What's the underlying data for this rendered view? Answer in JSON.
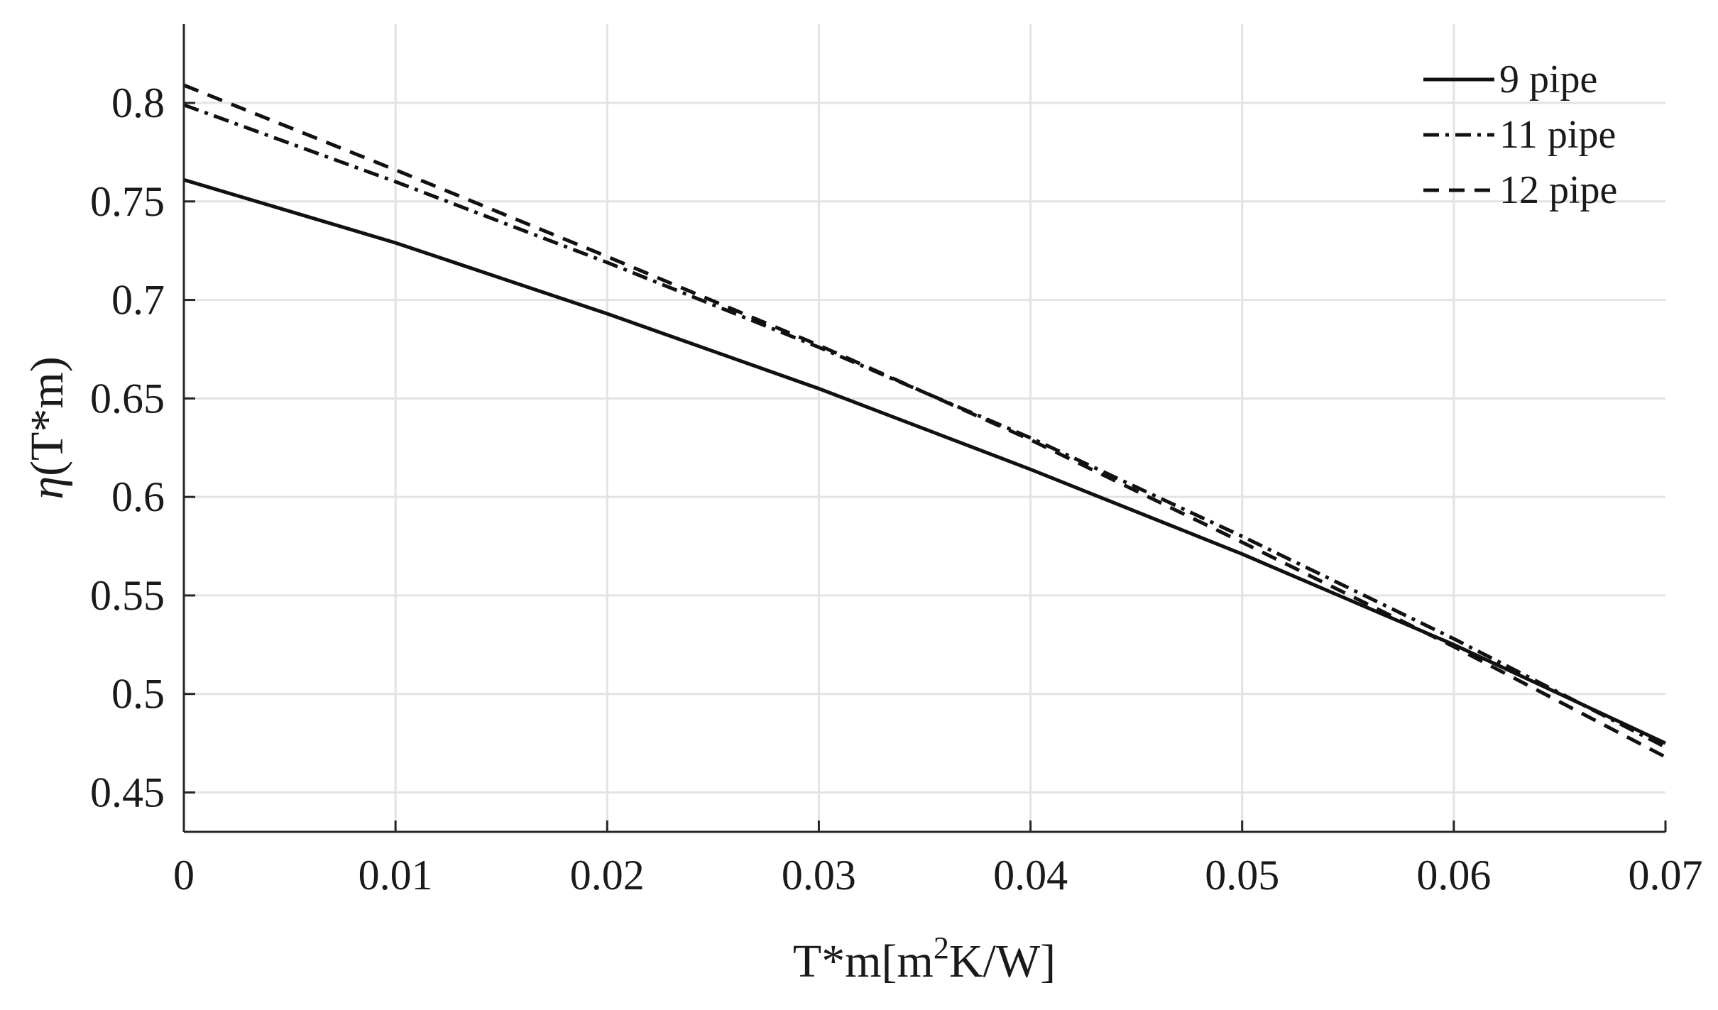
{
  "chart_data": {
    "type": "line",
    "title": "",
    "xlabel": "T*m[m²K/W]",
    "xlabel_parts": {
      "main": "T*m[m",
      "sup": "2",
      "rest": "K/W]"
    },
    "ylabel": "η(T*m)",
    "ylabel_parts": {
      "symbol": "η",
      "rest": "(T*m)"
    },
    "xlim": [
      0,
      0.07
    ],
    "ylim": [
      0.43,
      0.84
    ],
    "grid": true,
    "legend_position": "top-right",
    "x_ticks": [
      0,
      0.01,
      0.02,
      0.03,
      0.04,
      0.05,
      0.06,
      0.07
    ],
    "x_tick_labels": [
      "0",
      "0.01",
      "0.02",
      "0.03",
      "0.04",
      "0.05",
      "0.06",
      "0.07"
    ],
    "y_ticks": [
      0.45,
      0.5,
      0.55,
      0.6,
      0.65,
      0.7,
      0.75,
      0.8
    ],
    "y_tick_labels": [
      "0.45",
      "0.5",
      "0.55",
      "0.6",
      "0.65",
      "0.7",
      "0.75",
      "0.8"
    ],
    "x": [
      0,
      0.01,
      0.02,
      0.03,
      0.04,
      0.05,
      0.06,
      0.07
    ],
    "series": [
      {
        "name": "9 pipe",
        "style": "solid",
        "values": [
          0.761,
          0.729,
          0.693,
          0.655,
          0.614,
          0.571,
          0.525,
          0.475
        ]
      },
      {
        "name": "11 pipe",
        "style": "dash-dot",
        "values": [
          0.799,
          0.76,
          0.719,
          0.676,
          0.63,
          0.58,
          0.528,
          0.473
        ]
      },
      {
        "name": "12 pipe",
        "style": "dashed",
        "values": [
          0.809,
          0.766,
          0.722,
          0.677,
          0.629,
          0.577,
          0.524,
          0.468
        ]
      }
    ]
  }
}
